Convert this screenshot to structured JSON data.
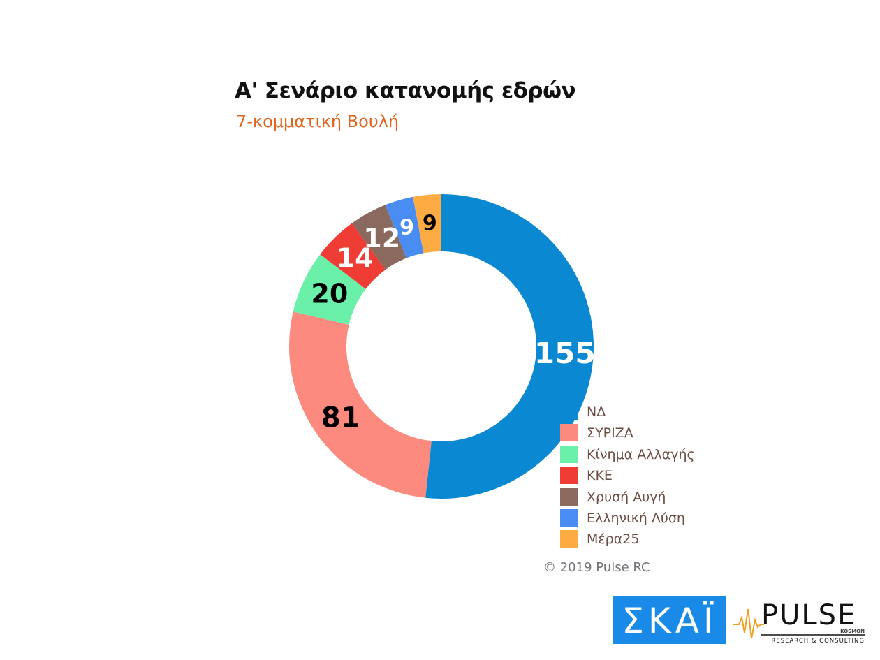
{
  "title": "Α' Σενάριο κατανομής εδρών",
  "subtitle": "7-κομματική Βουλή",
  "chart_data": {
    "type": "pie",
    "title": "Α' Σενάριο κατανομής εδρών",
    "subtitle": "7-κομματική Βουλή",
    "categories": [
      "ΝΔ",
      "ΣΥΡΙΖΑ",
      "Κίνημα Αλλαγής",
      "ΚΚΕ",
      "Χρυσή Αυγή",
      "Ελληνική Λύση",
      "Μέρα25"
    ],
    "values": [
      155,
      81,
      20,
      14,
      12,
      9,
      9
    ],
    "colors": [
      "#0a88d2",
      "#fd8a7e",
      "#6af0a8",
      "#ef3c35",
      "#8a6a5f",
      "#4a8df2",
      "#ffab43"
    ],
    "label_colors": [
      "#ffffff",
      "#000000",
      "#000000",
      "#ffffff",
      "#ffffff",
      "#ffffff",
      "#000000"
    ],
    "data_labels": [
      "155",
      "81",
      "20",
      "14",
      "12",
      "9",
      "9"
    ],
    "legend_position": "bottom-right"
  },
  "legend": [
    {
      "label": "ΝΔ",
      "color": "#0a88d2"
    },
    {
      "label": "ΣΥΡΙΖΑ",
      "color": "#fd8a7e"
    },
    {
      "label": "Κίνημα Αλλαγής",
      "color": "#6af0a8"
    },
    {
      "label": "ΚΚΕ",
      "color": "#ef3c35"
    },
    {
      "label": "Χρυσή Αυγή",
      "color": "#8a6a5f"
    },
    {
      "label": "Ελληνική Λύση",
      "color": "#4a8df2"
    },
    {
      "label": "Μέρα25",
      "color": "#ffab43"
    }
  ],
  "credit": "© 2019 Pulse RC",
  "logos": {
    "skai": "ΣΚΑΪ",
    "pulse": "PULSE",
    "pulse_tag": "KOSMON",
    "pulse_sub": "RESEARCH & CONSULTING"
  }
}
